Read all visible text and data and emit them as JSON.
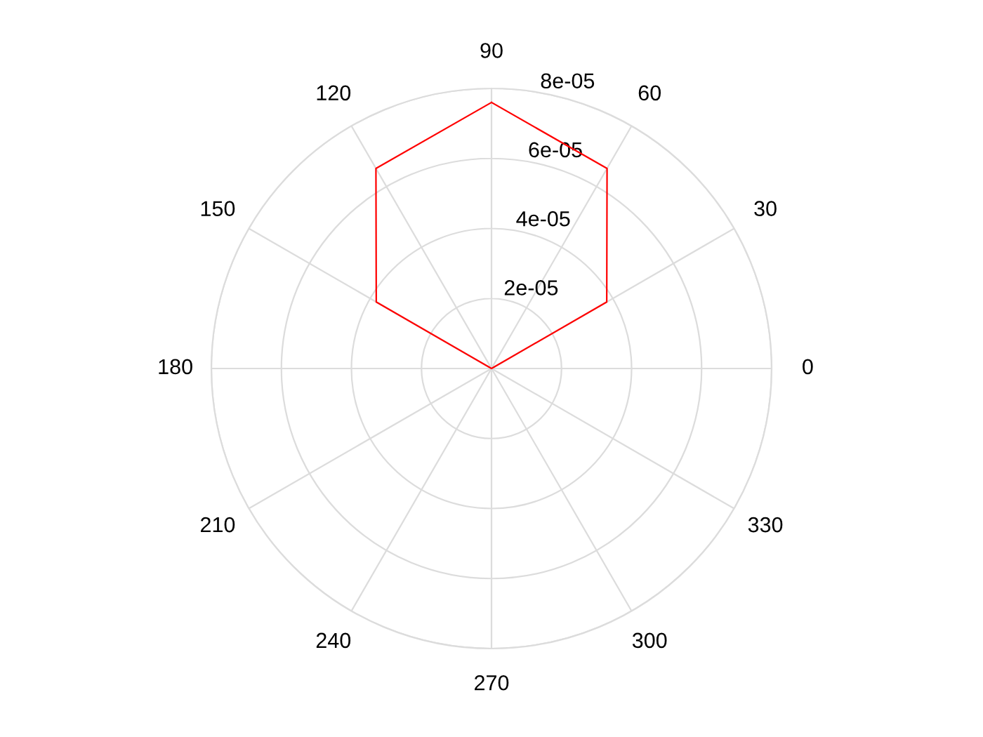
{
  "chart_data": {
    "type": "radar",
    "categories": [
      "90",
      "60",
      "30",
      "0",
      "330",
      "300",
      "270",
      "240",
      "210",
      "180",
      "150",
      "120"
    ],
    "series": [
      {
        "color": "#ff0000",
        "values": [
          7.6e-05,
          6.6e-05,
          3.8e-05,
          0,
          0,
          0,
          0,
          0,
          0,
          0,
          3.8e-05,
          6.6e-05
        ]
      }
    ],
    "ylim": [
      0,
      8e-05
    ],
    "yticks": [
      {
        "value": 2e-05,
        "label": "2e-05"
      },
      {
        "value": 4e-05,
        "label": "4e-05"
      },
      {
        "value": 6e-05,
        "label": "6e-05"
      },
      {
        "value": 8e-05,
        "label": "8e-05"
      }
    ],
    "grid": true,
    "marker": "none",
    "line_style": "solid"
  }
}
